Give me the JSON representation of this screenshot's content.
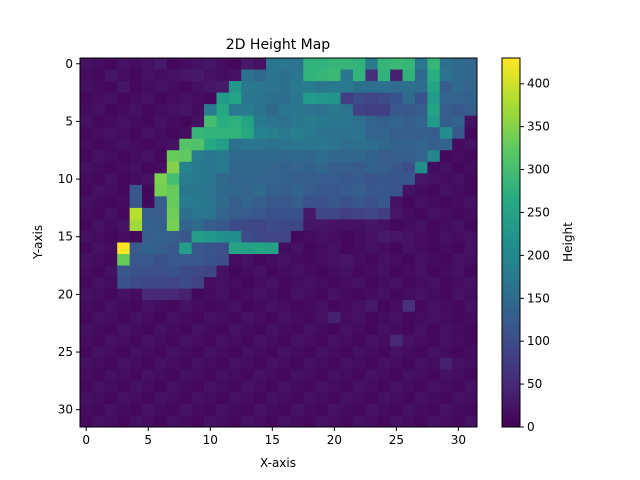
{
  "chart_data": {
    "type": "heatmap",
    "title": "2D Height Map",
    "xlabel": "X-axis",
    "ylabel": "Y-axis",
    "colorbar_label": "Height",
    "colormap": "viridis",
    "x_range": [
      0,
      31
    ],
    "y_range": [
      0,
      31
    ],
    "y_inverted": true,
    "value_range": [
      0,
      430
    ],
    "x_ticks": [
      0,
      5,
      10,
      15,
      20,
      25,
      30
    ],
    "y_ticks": [
      0,
      5,
      10,
      15,
      20,
      25,
      30
    ],
    "colorbar_ticks": [
      0,
      50,
      100,
      150,
      200,
      250,
      300,
      350,
      400
    ],
    "grid": false,
    "values": [
      [
        20,
        15,
        10,
        20,
        15,
        20,
        30,
        10,
        15,
        20,
        25,
        15,
        10,
        30,
        20,
        170,
        170,
        165,
        280,
        280,
        285,
        285,
        280,
        180,
        285,
        290,
        285,
        170,
        285,
        160,
        150,
        145
      ],
      [
        15,
        10,
        25,
        15,
        10,
        20,
        15,
        20,
        25,
        30,
        20,
        15,
        20,
        160,
        150,
        165,
        160,
        170,
        280,
        285,
        290,
        170,
        280,
        60,
        280,
        40,
        280,
        150,
        270,
        165,
        150,
        145
      ],
      [
        20,
        15,
        10,
        25,
        10,
        15,
        20,
        15,
        10,
        20,
        25,
        30,
        230,
        175,
        170,
        165,
        160,
        175,
        180,
        170,
        175,
        175,
        160,
        160,
        160,
        155,
        160,
        155,
        250,
        130,
        150,
        140
      ],
      [
        10,
        15,
        20,
        10,
        15,
        20,
        10,
        15,
        20,
        15,
        10,
        235,
        250,
        170,
        165,
        160,
        155,
        170,
        235,
        230,
        225,
        80,
        100,
        90,
        100,
        110,
        150,
        110,
        235,
        140,
        140,
        135
      ],
      [
        15,
        20,
        10,
        15,
        20,
        10,
        15,
        20,
        25,
        15,
        180,
        260,
        175,
        180,
        165,
        150,
        170,
        170,
        165,
        160,
        175,
        165,
        85,
        80,
        80,
        120,
        120,
        130,
        250,
        125,
        120,
        130
      ],
      [
        20,
        10,
        15,
        20,
        15,
        10,
        20,
        15,
        10,
        20,
        300,
        270,
        275,
        250,
        175,
        165,
        160,
        170,
        180,
        175,
        170,
        170,
        160,
        140,
        130,
        140,
        130,
        140,
        235,
        130,
        140,
        20
      ],
      [
        10,
        15,
        20,
        15,
        10,
        20,
        15,
        10,
        15,
        285,
        280,
        280,
        280,
        260,
        190,
        185,
        175,
        185,
        175,
        165,
        165,
        165,
        165,
        140,
        140,
        130,
        130,
        130,
        130,
        210,
        120,
        10
      ],
      [
        15,
        10,
        15,
        20,
        15,
        10,
        15,
        20,
        315,
        310,
        260,
        240,
        160,
        170,
        165,
        160,
        165,
        170,
        170,
        170,
        165,
        155,
        160,
        155,
        145,
        135,
        135,
        140,
        130,
        140,
        15,
        20
      ],
      [
        10,
        20,
        15,
        10,
        15,
        20,
        10,
        330,
        325,
        180,
        170,
        175,
        150,
        150,
        150,
        150,
        145,
        150,
        145,
        155,
        145,
        145,
        145,
        135,
        125,
        130,
        130,
        140,
        200,
        10,
        15,
        10
      ],
      [
        20,
        15,
        10,
        15,
        20,
        10,
        15,
        350,
        190,
        175,
        170,
        175,
        145,
        145,
        145,
        140,
        135,
        140,
        135,
        145,
        130,
        130,
        125,
        135,
        130,
        120,
        105,
        210,
        15,
        20,
        10,
        15
      ],
      [
        15,
        10,
        20,
        10,
        15,
        20,
        345,
        300,
        180,
        175,
        170,
        150,
        140,
        145,
        140,
        140,
        135,
        130,
        130,
        125,
        125,
        120,
        125,
        115,
        120,
        115,
        120,
        25,
        20,
        15,
        20,
        10
      ],
      [
        10,
        20,
        15,
        10,
        120,
        10,
        340,
        330,
        170,
        170,
        165,
        150,
        145,
        140,
        150,
        135,
        130,
        140,
        125,
        120,
        120,
        125,
        130,
        120,
        120,
        115,
        20,
        15,
        10,
        20,
        15,
        10
      ],
      [
        20,
        15,
        10,
        15,
        120,
        10,
        130,
        330,
        180,
        175,
        170,
        150,
        130,
        140,
        130,
        120,
        120,
        130,
        110,
        110,
        120,
        110,
        120,
        110,
        120,
        20,
        10,
        20,
        15,
        10,
        15,
        20
      ],
      [
        15,
        10,
        20,
        10,
        385,
        130,
        125,
        335,
        160,
        170,
        165,
        140,
        130,
        125,
        120,
        110,
        110,
        110,
        30,
        90,
        90,
        80,
        85,
        90,
        80,
        25,
        15,
        10,
        20,
        15,
        10,
        15
      ],
      [
        10,
        20,
        15,
        20,
        370,
        135,
        130,
        340,
        140,
        150,
        130,
        120,
        100,
        95,
        90,
        100,
        95,
        95,
        25,
        25,
        20,
        20,
        20,
        25,
        20,
        10,
        15,
        20,
        10,
        15,
        20,
        10
      ],
      [
        20,
        15,
        10,
        15,
        10,
        130,
        135,
        130,
        120,
        240,
        230,
        215,
        210,
        100,
        95,
        90,
        90,
        10,
        15,
        20,
        15,
        10,
        15,
        20,
        30,
        25,
        20,
        15,
        10,
        20,
        15,
        20
      ],
      [
        10,
        20,
        15,
        430,
        125,
        135,
        130,
        120,
        240,
        120,
        115,
        105,
        250,
        245,
        250,
        245,
        15,
        20,
        10,
        15,
        20,
        10,
        15,
        20,
        15,
        10,
        20,
        15,
        10,
        15,
        10,
        20
      ],
      [
        20,
        15,
        10,
        330,
        120,
        120,
        110,
        120,
        120,
        120,
        110,
        105,
        15,
        20,
        10,
        15,
        20,
        15,
        10,
        15,
        20,
        25,
        15,
        10,
        20,
        15,
        10,
        20,
        15,
        10,
        20,
        15
      ],
      [
        15,
        10,
        20,
        120,
        110,
        105,
        105,
        110,
        100,
        95,
        90,
        20,
        10,
        15,
        20,
        10,
        15,
        20,
        15,
        10,
        15,
        20,
        10,
        15,
        20,
        10,
        15,
        20,
        10,
        15,
        20,
        10
      ],
      [
        10,
        20,
        15,
        110,
        100,
        95,
        95,
        90,
        100,
        85,
        15,
        20,
        15,
        10,
        15,
        20,
        10,
        15,
        20,
        15,
        10,
        15,
        20,
        10,
        15,
        20,
        10,
        15,
        20,
        10,
        15,
        20
      ],
      [
        20,
        15,
        10,
        20,
        15,
        50,
        50,
        50,
        40,
        10,
        15,
        20,
        10,
        15,
        20,
        15,
        10,
        20,
        15,
        10,
        20,
        15,
        10,
        15,
        20,
        10,
        15,
        20,
        15,
        10,
        20,
        15
      ],
      [
        15,
        10,
        20,
        15,
        10,
        20,
        15,
        10,
        20,
        15,
        10,
        15,
        20,
        10,
        15,
        20,
        15,
        10,
        15,
        20,
        10,
        15,
        20,
        30,
        10,
        15,
        60,
        10,
        20,
        15,
        10,
        20
      ],
      [
        10,
        20,
        15,
        10,
        20,
        15,
        10,
        20,
        15,
        10,
        20,
        15,
        10,
        20,
        15,
        10,
        20,
        15,
        10,
        20,
        40,
        15,
        20,
        10,
        15,
        20,
        10,
        15,
        20,
        15,
        10,
        15
      ],
      [
        20,
        15,
        10,
        20,
        15,
        10,
        20,
        15,
        10,
        20,
        15,
        10,
        20,
        15,
        10,
        20,
        15,
        10,
        20,
        15,
        10,
        20,
        15,
        10,
        20,
        15,
        10,
        20,
        10,
        20,
        15,
        10
      ],
      [
        15,
        10,
        20,
        15,
        10,
        20,
        15,
        10,
        20,
        15,
        10,
        20,
        15,
        10,
        20,
        15,
        10,
        20,
        15,
        10,
        20,
        15,
        10,
        20,
        15,
        50,
        20,
        15,
        10,
        20,
        15,
        10
      ],
      [
        10,
        20,
        15,
        10,
        20,
        15,
        10,
        20,
        15,
        10,
        20,
        15,
        10,
        20,
        15,
        10,
        20,
        15,
        10,
        20,
        15,
        10,
        20,
        15,
        10,
        20,
        15,
        10,
        20,
        15,
        10,
        15
      ],
      [
        20,
        15,
        10,
        20,
        15,
        10,
        20,
        15,
        10,
        20,
        15,
        10,
        20,
        15,
        10,
        20,
        15,
        10,
        20,
        15,
        10,
        20,
        15,
        10,
        20,
        15,
        10,
        20,
        15,
        40,
        20,
        15
      ],
      [
        15,
        10,
        20,
        15,
        10,
        20,
        15,
        10,
        20,
        15,
        10,
        20,
        15,
        10,
        20,
        15,
        10,
        20,
        15,
        10,
        20,
        15,
        10,
        20,
        15,
        10,
        20,
        15,
        10,
        20,
        15,
        10
      ],
      [
        10,
        20,
        15,
        10,
        20,
        15,
        10,
        20,
        15,
        10,
        20,
        15,
        10,
        20,
        15,
        10,
        20,
        15,
        10,
        20,
        15,
        10,
        20,
        15,
        10,
        20,
        15,
        10,
        20,
        15,
        10,
        20
      ],
      [
        20,
        15,
        10,
        20,
        15,
        10,
        20,
        15,
        10,
        20,
        15,
        10,
        20,
        15,
        10,
        20,
        15,
        10,
        20,
        15,
        10,
        20,
        15,
        10,
        20,
        15,
        10,
        20,
        15,
        10,
        20,
        15
      ],
      [
        15,
        10,
        20,
        15,
        10,
        20,
        15,
        10,
        20,
        15,
        10,
        20,
        15,
        10,
        20,
        15,
        10,
        20,
        15,
        10,
        20,
        15,
        10,
        20,
        15,
        10,
        20,
        15,
        10,
        20,
        15,
        10
      ],
      [
        10,
        20,
        15,
        10,
        20,
        15,
        10,
        20,
        15,
        10,
        20,
        15,
        10,
        20,
        15,
        10,
        20,
        15,
        10,
        20,
        15,
        10,
        20,
        15,
        10,
        20,
        15,
        10,
        20,
        15,
        10,
        20
      ]
    ]
  }
}
